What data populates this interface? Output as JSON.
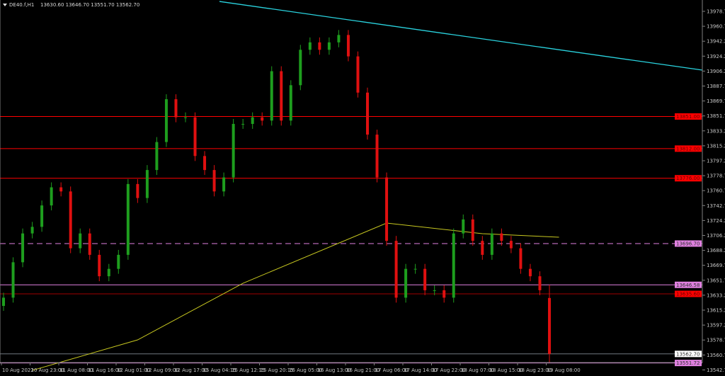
{
  "header": {
    "symbol": "DE40.f,H1",
    "ohlc": "13630.60 13646.70 13551.70 13562.70"
  },
  "chart_data": {
    "type": "candlestick",
    "symbol": "DE40.f",
    "timeframe": "H1",
    "colors": {
      "background": "#000000",
      "bull": "#1e9e1e",
      "bear": "#e01010",
      "ma": "#c8c820",
      "trendline": "#2ad4e0",
      "grid_axis": "#808080"
    },
    "y_axis": {
      "range": [
        13542.7,
        13978.7
      ],
      "ticks": [
        "13978.70",
        "13960.70",
        "13942.20",
        "13924.20",
        "13906.20",
        "13887.70",
        "13869.70",
        "13851.70",
        "13833.20",
        "13815.20",
        "13797.20",
        "13778.70",
        "13760.70",
        "13742.70",
        "13724.20",
        "13706.20",
        "13688.20",
        "13669.70",
        "13651.70",
        "13633.20",
        "13615.20",
        "13597.20",
        "13578.70",
        "13560.70",
        "13542.70"
      ]
    },
    "x_axis": {
      "ticks": [
        "10 Aug 2022",
        "10 Aug 23:00",
        "11 Aug 08:00",
        "11 Aug 16:00",
        "12 Aug 01:00",
        "12 Aug 09:00",
        "12 Aug 17:00",
        "15 Aug 04:15",
        "15 Aug 12:15",
        "15 Aug 20:15",
        "16 Aug 05:00",
        "16 Aug 13:00",
        "16 Aug 21:00",
        "17 Aug 06:00",
        "17 Aug 14:00",
        "17 Aug 22:00",
        "18 Aug 07:00",
        "18 Aug 15:00",
        "18 Aug 23:00",
        "19 Aug 08:00"
      ]
    },
    "closes": [
      13631,
      13674,
      13709,
      13717,
      13743,
      13765,
      13760,
      13691,
      13709,
      13683,
      13657,
      13666,
      13683,
      13769,
      13752,
      13786,
      13820,
      13872,
      13850,
      13850,
      13803,
      13786,
      13760,
      13777,
      13842,
      13842,
      13850,
      13846,
      13906,
      13846,
      13889,
      13932,
      13941,
      13932,
      13941,
      13950,
      13924,
      13880,
      13829,
      13777,
      13700,
      13631,
      13666,
      13666,
      13640,
      13640,
      13631,
      13709,
      13726,
      13700,
      13683,
      13709,
      13700,
      13691,
      13666,
      13657,
      13640,
      13630.6
    ],
    "last_candle": {
      "open": 13630.6,
      "high": 13646.7,
      "low": 13551.7,
      "close": 13562.7
    },
    "moving_average": [
      [
        3,
        13542.7
      ],
      [
        14,
        13579.7
      ],
      [
        25,
        13648.5
      ],
      [
        40,
        13721.6
      ],
      [
        50,
        13708.7
      ],
      [
        58,
        13704.4
      ]
    ],
    "trendline": {
      "from": 13990.7,
      "to": 13907.3
    },
    "levels": [
      {
        "price": 13851.0,
        "label": "13851.00",
        "color": "#ff0000",
        "style": "solid"
      },
      {
        "price": 13812.0,
        "label": "13812.00",
        "color": "#ff0000",
        "style": "solid"
      },
      {
        "price": 13776.0,
        "label": "13776.00",
        "color": "#ff0000",
        "style": "solid"
      },
      {
        "price": 13696.7,
        "label": "13696.70",
        "color": "#e080e0",
        "style": "dashed"
      },
      {
        "price": 13646.58,
        "label": "13646.58",
        "color": "#e080e0",
        "style": "solid"
      },
      {
        "price": 13635.6,
        "label": "13635.60",
        "color": "#ff0000",
        "style": "solid"
      },
      {
        "price": 13562.7,
        "label": "13562.70",
        "color": "#ffffff",
        "style": "current"
      },
      {
        "price": 13551.72,
        "label": "13551.72",
        "color": "#e080e0",
        "style": "solid"
      }
    ]
  }
}
